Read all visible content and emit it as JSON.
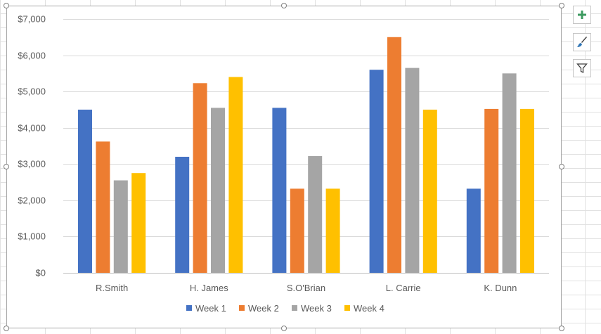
{
  "chart_data": {
    "type": "bar",
    "categories": [
      "R.Smith",
      "H. James",
      "S.O'Brian",
      "L. Carrie",
      "K. Dunn"
    ],
    "series": [
      {
        "name": "Week 1",
        "color": "#4472c4",
        "values": [
          4500,
          3200,
          4550,
          5600,
          2320
        ]
      },
      {
        "name": "Week 2",
        "color": "#ed7d31",
        "values": [
          3620,
          5230,
          2320,
          6500,
          4520
        ]
      },
      {
        "name": "Week 3",
        "color": "#a5a5a5",
        "values": [
          2550,
          4550,
          3220,
          5650,
          5500
        ]
      },
      {
        "name": "Week 4",
        "color": "#ffc000",
        "values": [
          2750,
          5400,
          2320,
          4500,
          4520
        ]
      }
    ],
    "yticks": [
      0,
      1000,
      2000,
      3000,
      4000,
      5000,
      6000,
      7000
    ],
    "ytick_labels": [
      "$0",
      "$1,000",
      "$2,000",
      "$3,000",
      "$4,000",
      "$5,000",
      "$6,000",
      "$7,000"
    ],
    "ylim": [
      0,
      7000
    ],
    "title": "",
    "xlabel": "",
    "ylabel": "",
    "grid": true,
    "legend_position": "bottom"
  },
  "side_buttons": {
    "elements": "chart-elements-plus-icon",
    "styles": "chart-styles-brush-icon",
    "filters": "chart-filters-funnel-icon"
  }
}
